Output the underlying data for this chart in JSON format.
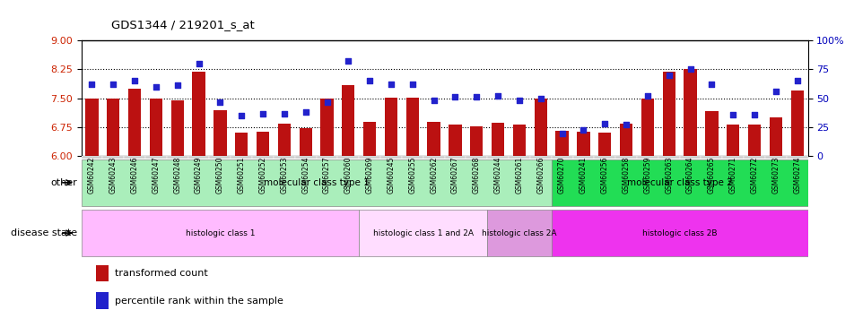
{
  "title": "GDS1344 / 219201_s_at",
  "samples": [
    "GSM60242",
    "GSM60243",
    "GSM60246",
    "GSM60247",
    "GSM60248",
    "GSM60249",
    "GSM60250",
    "GSM60251",
    "GSM60252",
    "GSM60253",
    "GSM60254",
    "GSM60257",
    "GSM60260",
    "GSM60269",
    "GSM60245",
    "GSM60255",
    "GSM60262",
    "GSM60267",
    "GSM60268",
    "GSM60244",
    "GSM60261",
    "GSM60266",
    "GSM60270",
    "GSM60241",
    "GSM60256",
    "GSM60258",
    "GSM60259",
    "GSM60263",
    "GSM60264",
    "GSM60265",
    "GSM60271",
    "GSM60272",
    "GSM60273",
    "GSM60274"
  ],
  "transformed_count": [
    7.5,
    7.5,
    7.75,
    7.5,
    7.45,
    8.18,
    7.2,
    6.62,
    6.63,
    6.85,
    6.72,
    7.5,
    7.85,
    6.88,
    7.52,
    7.52,
    6.88,
    6.83,
    6.77,
    6.86,
    6.83,
    7.5,
    6.65,
    6.63,
    6.62,
    6.85,
    7.5,
    8.2,
    8.25,
    7.17,
    6.82,
    6.82,
    7.0,
    7.7
  ],
  "percentile_rank": [
    62,
    62,
    65,
    60,
    61,
    80,
    47,
    35,
    37,
    37,
    38,
    47,
    82,
    65,
    62,
    62,
    48,
    51,
    51,
    52,
    48,
    50,
    20,
    23,
    28,
    27,
    52,
    70,
    75,
    62,
    36,
    36,
    56,
    65
  ],
  "ylim_left": [
    6,
    9
  ],
  "ylim_right": [
    0,
    100
  ],
  "yticks_left": [
    6,
    6.75,
    7.5,
    8.25,
    9
  ],
  "yticks_right": [
    0,
    25,
    50,
    75,
    100
  ],
  "bar_color": "#bb1111",
  "dot_color": "#2222cc",
  "grid_lines": [
    6.75,
    7.5,
    8.25
  ],
  "class_groups": {
    "molecular": [
      {
        "label": "molecular class type 1",
        "start": 0,
        "end": 22,
        "color": "#aaeebb"
      },
      {
        "label": "molecular class type 2",
        "start": 22,
        "end": 34,
        "color": "#22dd55"
      }
    ],
    "disease": [
      {
        "label": "histologic class 1",
        "start": 0,
        "end": 13,
        "color": "#ffbbff"
      },
      {
        "label": "histologic class 1 and 2A",
        "start": 13,
        "end": 19,
        "color": "#ffddff"
      },
      {
        "label": "histologic class 2A",
        "start": 19,
        "end": 22,
        "color": "#dd99dd"
      },
      {
        "label": "histologic class 2B",
        "start": 22,
        "end": 34,
        "color": "#ee33ee"
      }
    ]
  },
  "row_labels": [
    "other",
    "disease state"
  ],
  "legend_items": [
    {
      "label": "transformed count",
      "color": "#bb1111"
    },
    {
      "label": "percentile rank within the sample",
      "color": "#2222cc"
    }
  ]
}
